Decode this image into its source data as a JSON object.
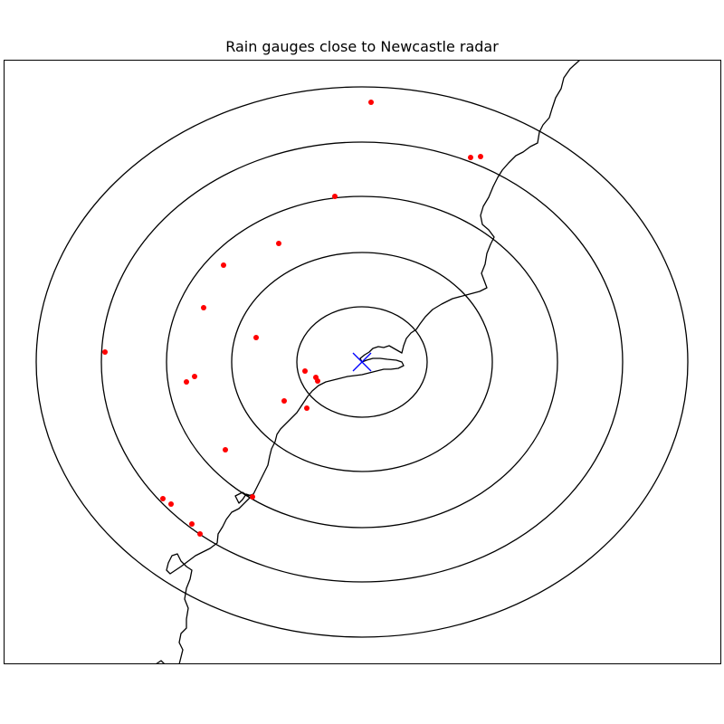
{
  "title": "Rain gauges close to Newcastle radar",
  "colors": {
    "gauge": "#ff0000",
    "radar": "#0000ff",
    "rings": "#000000",
    "coastline": "#000000"
  },
  "markers": {
    "radar": "x",
    "gauge": "dot"
  },
  "range_rings": {
    "count": 5
  },
  "gauge_count": 22
}
